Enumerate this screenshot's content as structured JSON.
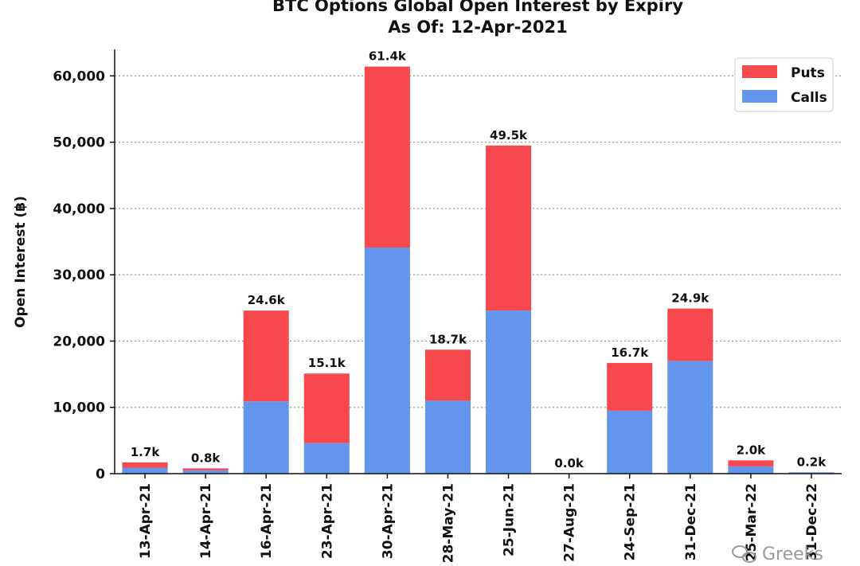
{
  "chart_data": {
    "type": "bar",
    "stacked": true,
    "title": "BTC Options Global Open Interest by Expiry",
    "subtitle": "As Of: 12-Apr-2021",
    "ylabel": "Open Interest (฿)",
    "xlabel": "",
    "ylim": [
      0,
      64000
    ],
    "yticks": [
      0,
      10000,
      20000,
      30000,
      40000,
      50000,
      60000
    ],
    "ytick_labels": [
      "0",
      "10,000",
      "20,000",
      "30,000",
      "40,000",
      "50,000",
      "60,000"
    ],
    "grid": "horizontal dotted",
    "legend_position": "top-right",
    "categories": [
      "13-Apr-21",
      "14-Apr-21",
      "16-Apr-21",
      "23-Apr-21",
      "30-Apr-21",
      "28-May-21",
      "25-Jun-21",
      "27-Aug-21",
      "24-Sep-21",
      "31-Dec-21",
      "25-Mar-22",
      "31-Dec-22"
    ],
    "series": [
      {
        "name": "Calls",
        "color": "#6495ed",
        "values": [
          900,
          500,
          10900,
          4600,
          34100,
          11000,
          24600,
          0,
          9500,
          17000,
          1100,
          200
        ]
      },
      {
        "name": "Puts",
        "color": "#f7484e",
        "values": [
          800,
          300,
          13700,
          10500,
          27300,
          7700,
          24900,
          0,
          7200,
          7900,
          900,
          0
        ]
      }
    ],
    "legend_order": [
      "Puts",
      "Calls"
    ],
    "data_labels": [
      "1.7k",
      "0.8k",
      "24.6k",
      "15.1k",
      "61.4k",
      "18.7k",
      "49.5k",
      "0.0k",
      "16.7k",
      "24.9k",
      "2.0k",
      "0.2k"
    ]
  },
  "watermark": "Greeks",
  "watermark_icon": "wechat-icon"
}
